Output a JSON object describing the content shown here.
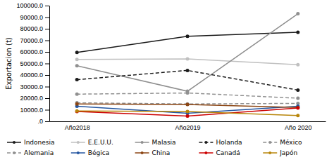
{
  "chart_data": {
    "type": "line",
    "y_label": "Exportacion (t)",
    "categories": [
      "Año2018",
      "Año2019",
      "Año 2020"
    ],
    "series": [
      {
        "name": "Indonesia",
        "color": "#1a1a1a",
        "line_style": "solid",
        "marker": "circle",
        "values": [
          59500,
          73500,
          77000
        ]
      },
      {
        "name": "E.E.U.U.",
        "color": "#c0c0c0",
        "line_style": "solid",
        "marker": "circle",
        "values": [
          53500,
          54000,
          49000
        ]
      },
      {
        "name": "Malasia",
        "color": "#909090",
        "line_style": "solid",
        "marker": "circle",
        "values": [
          48000,
          26000,
          93000
        ]
      },
      {
        "name": "Holanda",
        "color": "#1a1a1a",
        "line_style": "dashed",
        "marker": "circle",
        "values": [
          36000,
          44000,
          27000
        ]
      },
      {
        "name": "México",
        "color": "#909090",
        "line_style": "dashed",
        "marker": "circle",
        "values": [
          23500,
          24500,
          20000
        ]
      },
      {
        "name": "Alemania",
        "color": "#909090",
        "line_style": "dashed",
        "marker": "circle",
        "values": [
          16000,
          15000,
          15500
        ]
      },
      {
        "name": "Bégica",
        "color": "#2355a0",
        "line_style": "solid",
        "marker": "circle",
        "values": [
          13000,
          7000,
          13000
        ]
      },
      {
        "name": "China",
        "color": "#8b4513",
        "line_style": "solid",
        "marker": "circle",
        "values": [
          15000,
          14500,
          12000
        ]
      },
      {
        "name": "Canadá",
        "color": "#cc0000",
        "line_style": "solid",
        "marker": "circle",
        "values": [
          8500,
          4500,
          11500
        ]
      },
      {
        "name": "Japón",
        "color": "#b8860b",
        "line_style": "solid",
        "marker": "circle",
        "values": [
          9000,
          8500,
          5000
        ]
      }
    ],
    "ylim": [
      0,
      100000
    ],
    "yticks": [
      {
        "value": 0,
        "label": ".0"
      },
      {
        "value": 10000,
        "label": "10000.0"
      },
      {
        "value": 20000,
        "label": "20000.0"
      },
      {
        "value": 30000,
        "label": "30000.0"
      },
      {
        "value": 40000,
        "label": "40000.0"
      },
      {
        "value": 50000,
        "label": "50000.0"
      },
      {
        "value": 60000,
        "label": "60000.0"
      },
      {
        "value": 70000,
        "label": "70000.0"
      },
      {
        "value": 80000,
        "label": "80000.0"
      },
      {
        "value": 90000,
        "label": "90000.0"
      },
      {
        "value": 100000,
        "label": "100000.0"
      }
    ],
    "grid": false,
    "legend": "bottom"
  }
}
